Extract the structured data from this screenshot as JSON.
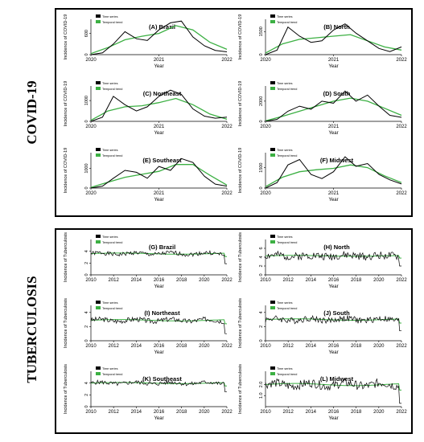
{
  "sections": [
    {
      "label": "COVID-19"
    },
    {
      "label": "TUBERCULOSIS"
    }
  ],
  "legend": {
    "series1": "Time series",
    "series2": "Temporal trend"
  },
  "colors": {
    "time_series": "#000000",
    "temporal_trend": "#3cb043",
    "frame": "#000000"
  },
  "chart_data": [
    {
      "type": "line",
      "title": "(A) Brazil",
      "ylabel": "Incidence of COVID-19",
      "xlabel": "Year",
      "xticks": [
        "2020",
        "2021",
        "2022"
      ],
      "yticks": [
        "0",
        "600"
      ],
      "xlim": [
        2020,
        2022
      ],
      "ylim": [
        0,
        1000
      ],
      "series": [
        {
          "name": "Time series",
          "x": [
            2020.0,
            2020.17,
            2020.33,
            2020.5,
            2020.67,
            2020.83,
            2021.0,
            2021.17,
            2021.33,
            2021.5,
            2021.67,
            2021.83,
            2022.0
          ],
          "values": [
            0,
            50,
            300,
            650,
            450,
            400,
            700,
            900,
            950,
            500,
            250,
            120,
            80
          ]
        },
        {
          "name": "Temporal trend",
          "x": [
            2020.0,
            2020.25,
            2020.5,
            2020.75,
            2021.0,
            2021.25,
            2021.5,
            2021.75,
            2022.0
          ],
          "values": [
            30,
            200,
            420,
            520,
            600,
            820,
            700,
            350,
            150
          ]
        }
      ]
    },
    {
      "type": "line",
      "title": "(B) North",
      "ylabel": "Incidence of COVID-19",
      "xlabel": "Year",
      "xticks": [
        "2020",
        "2021",
        "2022"
      ],
      "yticks": [
        "0",
        "1500"
      ],
      "xlim": [
        2020,
        2022
      ],
      "ylim": [
        0,
        2300
      ],
      "series": [
        {
          "name": "Time series",
          "x": [
            2020.0,
            2020.17,
            2020.33,
            2020.5,
            2020.67,
            2020.83,
            2021.0,
            2021.17,
            2021.33,
            2021.5,
            2021.67,
            2021.83,
            2022.0
          ],
          "values": [
            0,
            300,
            1800,
            1200,
            800,
            900,
            1600,
            2000,
            1400,
            900,
            400,
            200,
            500
          ]
        },
        {
          "name": "Temporal trend",
          "x": [
            2020.0,
            2020.25,
            2020.5,
            2020.75,
            2021.0,
            2021.25,
            2021.5,
            2021.75,
            2022.0
          ],
          "values": [
            100,
            700,
            1000,
            1100,
            1200,
            1300,
            900,
            500,
            300
          ]
        }
      ]
    },
    {
      "type": "line",
      "title": "(C) Northeast",
      "ylabel": "Incidence of COVID-19",
      "xlabel": "Year",
      "xticks": [
        "2020",
        "2021",
        "2022"
      ],
      "yticks": [
        "0",
        "1000"
      ],
      "xlim": [
        2020,
        2022
      ],
      "ylim": [
        0,
        1700
      ],
      "series": [
        {
          "name": "Time series",
          "x": [
            2020.0,
            2020.17,
            2020.33,
            2020.5,
            2020.67,
            2020.83,
            2021.0,
            2021.17,
            2021.33,
            2021.5,
            2021.67,
            2021.83,
            2022.0
          ],
          "values": [
            0,
            200,
            1200,
            800,
            500,
            700,
            1200,
            1500,
            1300,
            600,
            250,
            150,
            200
          ]
        },
        {
          "name": "Temporal trend",
          "x": [
            2020.0,
            2020.25,
            2020.5,
            2020.75,
            2021.0,
            2021.25,
            2021.5,
            2021.75,
            2022.0
          ],
          "values": [
            50,
            500,
            700,
            750,
            900,
            1100,
            800,
            350,
            100
          ]
        }
      ]
    },
    {
      "type": "line",
      "title": "(D) South",
      "ylabel": "Incidence of COVID-19",
      "xlabel": "Year",
      "xticks": [
        "2020",
        "2021",
        "2022"
      ],
      "yticks": [
        "0",
        "2000"
      ],
      "xlim": [
        2020,
        2022
      ],
      "ylim": [
        0,
        3500
      ],
      "series": [
        {
          "name": "Time series",
          "x": [
            2020.0,
            2020.17,
            2020.33,
            2020.5,
            2020.67,
            2020.83,
            2021.0,
            2021.17,
            2021.33,
            2021.5,
            2021.67,
            2021.83,
            2022.0
          ],
          "values": [
            0,
            200,
            1000,
            1500,
            1200,
            2000,
            1800,
            3000,
            2000,
            2600,
            1500,
            600,
            400
          ]
        },
        {
          "name": "Temporal trend",
          "x": [
            2020.0,
            2020.25,
            2020.5,
            2020.75,
            2021.0,
            2021.25,
            2021.5,
            2021.75,
            2022.0
          ],
          "values": [
            50,
            500,
            1000,
            1500,
            2000,
            2300,
            2000,
            1300,
            600
          ]
        }
      ]
    },
    {
      "type": "line",
      "title": "(E) Southeast",
      "ylabel": "Incidence of COVID-19",
      "xlabel": "Year",
      "xticks": [
        "2020",
        "2021",
        "2022"
      ],
      "yticks": [
        "0",
        "1000"
      ],
      "xlim": [
        2020,
        2022
      ],
      "ylim": [
        0,
        1800
      ],
      "series": [
        {
          "name": "Time series",
          "x": [
            2020.0,
            2020.17,
            2020.33,
            2020.5,
            2020.67,
            2020.83,
            2021.0,
            2021.17,
            2021.33,
            2021.5,
            2021.67,
            2021.83,
            2022.0
          ],
          "values": [
            0,
            100,
            500,
            900,
            800,
            500,
            1100,
            900,
            1500,
            1300,
            600,
            200,
            100
          ]
        },
        {
          "name": "Temporal trend",
          "x": [
            2020.0,
            2020.25,
            2020.5,
            2020.75,
            2021.0,
            2021.25,
            2021.5,
            2021.75,
            2022.0
          ],
          "values": [
            30,
            300,
            550,
            700,
            850,
            1200,
            1200,
            650,
            150
          ]
        }
      ]
    },
    {
      "type": "line",
      "title": "(F) Midwest",
      "ylabel": "Incidence of COVID-19",
      "xlabel": "Year",
      "xticks": [
        "2020",
        "2021",
        "2022"
      ],
      "yticks": [
        "0",
        "1500"
      ],
      "xlim": [
        2020,
        2022
      ],
      "ylim": [
        0,
        2600
      ],
      "series": [
        {
          "name": "Time series",
          "x": [
            2020.0,
            2020.17,
            2020.33,
            2020.5,
            2020.67,
            2020.83,
            2021.0,
            2021.17,
            2021.33,
            2021.5,
            2021.67,
            2021.83,
            2022.0
          ],
          "values": [
            0,
            400,
            1700,
            2100,
            1000,
            700,
            1200,
            2300,
            1600,
            1800,
            1000,
            600,
            300
          ]
        },
        {
          "name": "Temporal trend",
          "x": [
            2020.0,
            2020.25,
            2020.5,
            2020.75,
            2021.0,
            2021.25,
            2021.5,
            2021.75,
            2022.0
          ],
          "values": [
            100,
            800,
            1200,
            1350,
            1450,
            1700,
            1500,
            900,
            400
          ]
        }
      ]
    },
    {
      "type": "line",
      "title": "(G) Brazil",
      "ylabel": "Incidence of Tuberculosis",
      "xlabel": "Year",
      "xticks": [
        "2010",
        "2012",
        "2014",
        "2016",
        "2018",
        "2020",
        "2022"
      ],
      "yticks": [
        "0",
        "2",
        "4"
      ],
      "xlim": [
        2010,
        2022
      ],
      "ylim": [
        0,
        6
      ],
      "base": 3.6,
      "amp": 0.35,
      "seed": 1,
      "dip": 1.9
    },
    {
      "type": "line",
      "title": "(H) North",
      "ylabel": "Incidence of Tuberculosis",
      "xlabel": "Year",
      "xticks": [
        "2010",
        "2012",
        "2014",
        "2016",
        "2018",
        "2020",
        "2022"
      ],
      "yticks": [
        "0",
        "2",
        "4",
        "6"
      ],
      "xlim": [
        2010,
        2022
      ],
      "ylim": [
        0,
        8
      ],
      "base": 4.3,
      "amp": 0.9,
      "seed": 2,
      "dip": 2.0
    },
    {
      "type": "line",
      "title": "(I) Northeast",
      "ylabel": "Incidence of Tuberculosis",
      "xlabel": "Year",
      "xticks": [
        "2010",
        "2012",
        "2014",
        "2016",
        "2018",
        "2020",
        "2022"
      ],
      "yticks": [
        "0",
        "2",
        "4"
      ],
      "xlim": [
        2010,
        2022
      ],
      "ylim": [
        0,
        5
      ],
      "base": 2.9,
      "amp": 0.35,
      "seed": 3,
      "dip": 1.0
    },
    {
      "type": "line",
      "title": "(J) South",
      "ylabel": "Incidence of Tuberculosis",
      "xlabel": "Year",
      "xticks": [
        "2010",
        "2012",
        "2014",
        "2016",
        "2018",
        "2020",
        "2022"
      ],
      "yticks": [
        "0",
        "2",
        "4"
      ],
      "xlim": [
        2010,
        2022
      ],
      "ylim": [
        0,
        5
      ],
      "base": 3.0,
      "amp": 0.45,
      "seed": 4,
      "dip": 1.4
    },
    {
      "type": "line",
      "title": "(K) Southeast",
      "ylabel": "Incidence of Tuberculosis",
      "xlabel": "Year",
      "xticks": [
        "2010",
        "2012",
        "2014",
        "2016",
        "2018",
        "2020",
        "2022"
      ],
      "yticks": [
        "0",
        "2",
        "4"
      ],
      "xlim": [
        2010,
        2022
      ],
      "ylim": [
        0,
        6
      ],
      "base": 4.0,
      "amp": 0.35,
      "seed": 5,
      "dip": 2.5
    },
    {
      "type": "line",
      "title": "(L) Midwest",
      "ylabel": "Incidence of Tuberculosis",
      "xlabel": "Year",
      "xticks": [
        "2010",
        "2012",
        "2014",
        "2016",
        "2018",
        "2020",
        "2022"
      ],
      "yticks": [
        "1.0",
        "2.0"
      ],
      "ytickvals": [
        1.0,
        2.0
      ],
      "xlim": [
        2010,
        2022
      ],
      "ylim": [
        0,
        3.2
      ],
      "base": 2.0,
      "amp": 0.4,
      "seed": 6,
      "dip": 0.3
    }
  ]
}
